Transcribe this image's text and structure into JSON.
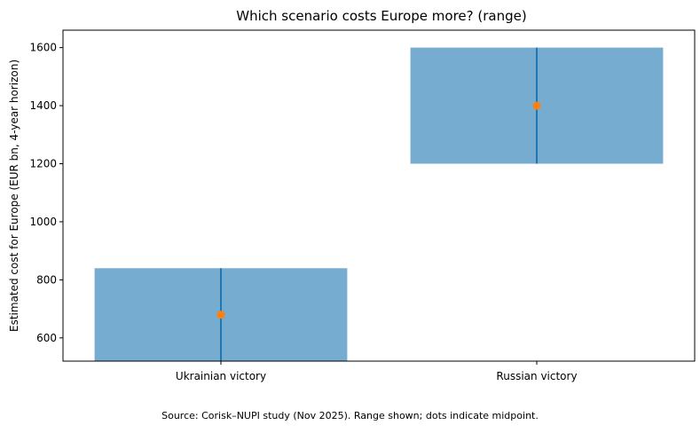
{
  "chart_data": {
    "type": "bar",
    "title": "Which scenario costs Europe more? (range)",
    "xlabel": "",
    "ylabel": "Estimated cost for Europe (EUR bn, 4-year horizon)",
    "categories": [
      "Ukrainian victory",
      "Russian victory"
    ],
    "ranges": [
      {
        "low": 520,
        "high": 840,
        "midpoint": 680
      },
      {
        "low": 1200,
        "high": 1600,
        "midpoint": 1400
      }
    ],
    "ylim": [
      520,
      1660
    ],
    "yticks": [
      600,
      800,
      1000,
      1200,
      1400,
      1600
    ],
    "grid": false,
    "legend": "none",
    "colors": {
      "bar": "#77acd1",
      "line": "#1f77b4",
      "dot": "#ff7f0e"
    }
  },
  "footnote": "Source: Corisk–NUPI study (Nov 2025). Range shown; dots indicate midpoint."
}
